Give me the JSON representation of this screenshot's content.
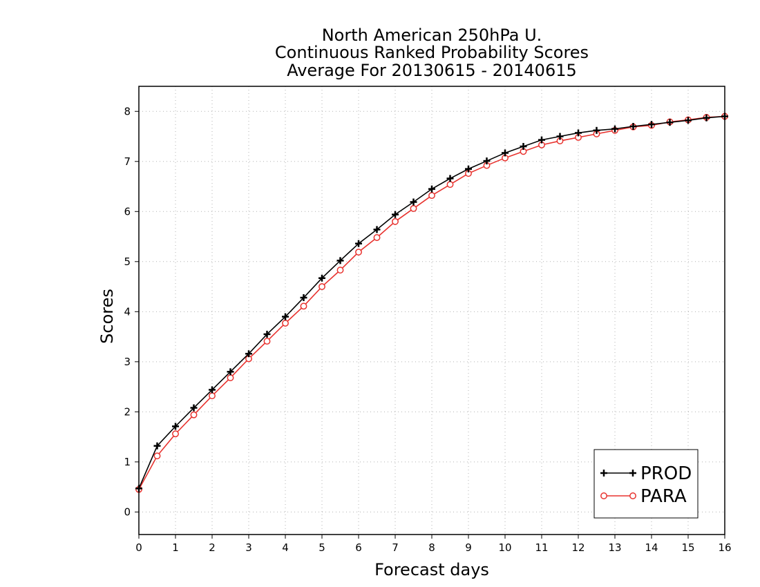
{
  "chart_data": {
    "type": "line",
    "title": [
      "North American 250hPa U.",
      "Continuous Ranked Probability Scores",
      "Average For 20130615 - 20140615"
    ],
    "xlabel": "Forecast days",
    "ylabel": "Scores",
    "xlim": [
      0,
      16
    ],
    "ylim": [
      -0.45,
      8.5
    ],
    "xticks": [
      "0",
      "1",
      "2",
      "3",
      "4",
      "5",
      "6",
      "7",
      "8",
      "9",
      "10",
      "11",
      "12",
      "13",
      "14",
      "15",
      "16"
    ],
    "yticks": [
      "0",
      "1",
      "2",
      "3",
      "4",
      "5",
      "6",
      "7",
      "8"
    ],
    "grid": true,
    "legend_position": "bottom-right",
    "x": [
      0,
      0.5,
      1,
      1.5,
      2,
      2.5,
      3,
      3.5,
      4,
      4.5,
      5,
      5.5,
      6,
      6.5,
      7,
      7.5,
      8,
      8.5,
      9,
      9.5,
      10,
      10.5,
      11,
      11.5,
      12,
      12.5,
      13,
      13.5,
      14,
      14.5,
      15,
      15.5,
      16
    ],
    "series": [
      {
        "name": "PROD",
        "color": "#000000",
        "marker": "plus",
        "values": [
          0.47,
          1.32,
          1.71,
          2.08,
          2.44,
          2.8,
          3.16,
          3.55,
          3.9,
          4.28,
          4.67,
          5.02,
          5.36,
          5.64,
          5.94,
          6.19,
          6.45,
          6.66,
          6.85,
          7.01,
          7.17,
          7.3,
          7.43,
          7.5,
          7.57,
          7.62,
          7.65,
          7.7,
          7.74,
          7.78,
          7.82,
          7.87,
          7.9
        ]
      },
      {
        "name": "PARA",
        "color": "#e8322e",
        "marker": "circle",
        "values": [
          0.45,
          1.12,
          1.56,
          1.94,
          2.32,
          2.68,
          3.06,
          3.41,
          3.77,
          4.11,
          4.5,
          4.83,
          5.19,
          5.48,
          5.8,
          6.06,
          6.32,
          6.54,
          6.76,
          6.92,
          7.07,
          7.2,
          7.33,
          7.41,
          7.48,
          7.55,
          7.62,
          7.69,
          7.72,
          7.79,
          7.83,
          7.88,
          7.9
        ]
      }
    ]
  }
}
